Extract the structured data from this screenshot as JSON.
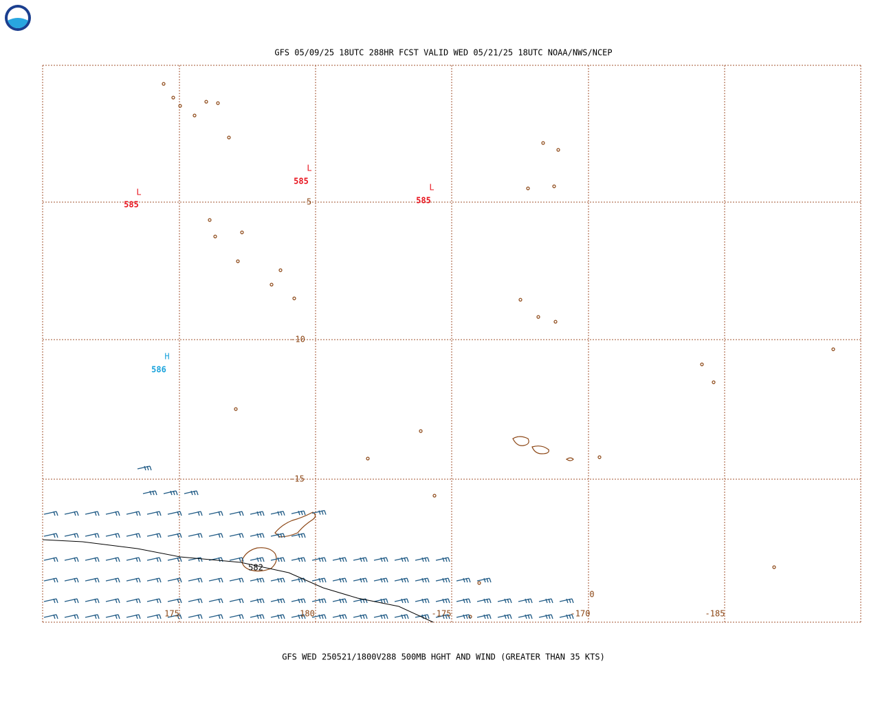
{
  "header": {
    "title": "GFS 05/09/25 18UTC 288HR FCST VALID WED 05/21/25 18UTC NOAA/NWS/NCEP"
  },
  "map": {
    "lat_labels": [
      -5,
      -10,
      -15
    ],
    "lon_labels": [
      175,
      180,
      -175,
      -170,
      -185
    ],
    "centers": [
      {
        "symbol": "L",
        "value": 585
      },
      {
        "symbol": "L",
        "value": 585
      },
      {
        "symbol": "L",
        "value": 585
      },
      {
        "symbol": "H",
        "value": 586
      }
    ],
    "contour_label": 582,
    "stray_label": 0
  },
  "footer": {
    "caption": "GFS WED 250521/1800V288 500MB HGHT AND WIND (GREATER THAN 35 KTS)"
  }
}
